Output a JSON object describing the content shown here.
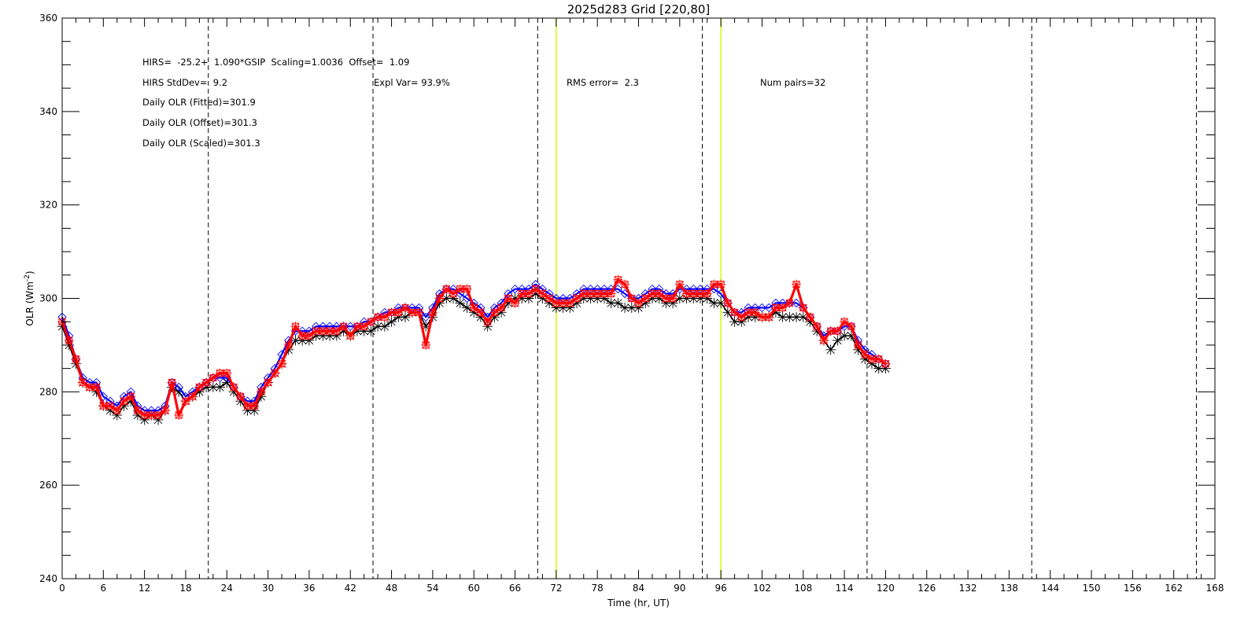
{
  "chart_data": {
    "type": "line",
    "title": "2025d283 Grid [220,80]",
    "xlabel": "Time (hr, UT)",
    "ylabel": "OLR (Wm",
    "ylabel_sup": "-2",
    "ylabel_close": ")",
    "xlim": [
      0,
      168
    ],
    "ylim": [
      240,
      360
    ],
    "xticks": [
      0,
      6,
      12,
      18,
      24,
      30,
      36,
      42,
      48,
      54,
      60,
      66,
      72,
      78,
      84,
      90,
      96,
      102,
      108,
      114,
      120,
      126,
      132,
      138,
      144,
      150,
      156,
      162,
      168
    ],
    "yticks": [
      240,
      260,
      280,
      300,
      320,
      340,
      360
    ],
    "grid": false,
    "annotations": {
      "fit_line": "HIRS=  -25.2+  1.090*GSIP  Scaling=1.0036  Offset=  1.09",
      "stddev": "HIRS StdDev=  9.2",
      "olr_fitted": "Daily OLR (Fitted)=301.9",
      "olr_offset": "Daily OLR (Offset)=301.3",
      "olr_scaled": "Daily OLR (Scaled)=301.3",
      "expl_var": "Expl Var= 93.9%",
      "rms_error": "RMS error=  2.3",
      "num_pairs": "Num pairs=32"
    },
    "dashed_vlines": [
      21.3,
      45.3,
      69.3,
      93.3,
      117.3,
      141.3,
      165.3
    ],
    "highlight_vlines": [
      72,
      96
    ],
    "colors": {
      "black_series": "#000000",
      "blue_series": "#0000ff",
      "red_series": "#ff0000",
      "highlight": "#ccff00"
    },
    "series": [
      {
        "key": "black",
        "marker": "asterisk",
        "x": [
          0,
          1,
          2,
          3,
          4,
          5,
          6,
          7,
          8,
          9,
          10,
          11,
          12,
          13,
          14,
          15,
          16,
          17,
          18,
          19,
          20,
          21,
          22,
          23,
          24,
          25,
          26,
          27,
          28,
          29,
          30,
          31,
          32,
          33,
          34,
          35,
          36,
          37,
          38,
          39,
          40,
          41,
          42,
          43,
          44,
          45,
          46,
          47,
          48,
          49,
          50,
          51,
          52,
          53,
          54,
          55,
          56,
          57,
          58,
          59,
          60,
          61,
          62,
          63,
          64,
          65,
          66,
          67,
          68,
          69,
          70,
          71,
          72,
          73,
          74,
          75,
          76,
          77,
          78,
          79,
          80,
          81,
          82,
          83,
          84,
          85,
          86,
          87,
          88,
          89,
          90,
          91,
          92,
          93,
          94,
          95,
          96,
          97,
          98,
          99,
          100,
          101,
          102,
          103,
          104,
          105,
          106,
          107,
          108,
          109,
          110,
          111,
          112,
          113,
          114,
          115,
          116,
          117,
          118,
          119,
          120
        ],
        "values": [
          294,
          290,
          286,
          282,
          281,
          280,
          277,
          276,
          275,
          277,
          278,
          275,
          274,
          275,
          274,
          276,
          281,
          280,
          278,
          279,
          280,
          281,
          281,
          281,
          282,
          280,
          278,
          276,
          276,
          279,
          282,
          284,
          286,
          289,
          291,
          291,
          291,
          292,
          292,
          292,
          292,
          293,
          292,
          293,
          293,
          293,
          294,
          294,
          295,
          296,
          296,
          297,
          297,
          294,
          296,
          299,
          300,
          300,
          299,
          298,
          297,
          296,
          294,
          296,
          297,
          299,
          300,
          300,
          300,
          301,
          300,
          299,
          298,
          298,
          298,
          299,
          300,
          300,
          300,
          300,
          299,
          299,
          298,
          298,
          298,
          299,
          300,
          300,
          299,
          299,
          300,
          300,
          300,
          300,
          300,
          299,
          299,
          297,
          295,
          295,
          296,
          296,
          296,
          296,
          297,
          296,
          296,
          296,
          296,
          295,
          293,
          291,
          289,
          291,
          292,
          292,
          289,
          287,
          286,
          285,
          285
        ]
      },
      {
        "key": "blue",
        "marker": "diamond",
        "x": [
          0,
          1,
          2,
          3,
          4,
          5,
          6,
          7,
          8,
          9,
          10,
          11,
          12,
          13,
          14,
          15,
          16,
          17,
          18,
          19,
          20,
          21,
          22,
          23,
          24,
          25,
          26,
          27,
          28,
          29,
          30,
          31,
          32,
          33,
          34,
          35,
          36,
          37,
          38,
          39,
          40,
          41,
          42,
          43,
          44,
          45,
          46,
          47,
          48,
          49,
          50,
          51,
          52,
          53,
          54,
          55,
          56,
          57,
          58,
          59,
          60,
          61,
          62,
          63,
          64,
          65,
          66,
          67,
          68,
          69,
          70,
          71,
          72,
          73,
          74,
          75,
          76,
          77,
          78,
          79,
          80,
          81,
          82,
          83,
          84,
          85,
          86,
          87,
          88,
          89,
          90,
          91,
          92,
          93,
          94,
          95,
          96,
          97,
          98,
          99,
          100,
          101,
          102,
          103,
          104,
          105,
          106,
          107,
          108,
          109,
          110,
          111,
          112,
          113,
          114,
          115,
          116,
          117,
          118,
          119,
          120
        ],
        "values": [
          296,
          292,
          287,
          283,
          282,
          282,
          279,
          278,
          277,
          279,
          280,
          277,
          276,
          276,
          276,
          277,
          282,
          281,
          279,
          280,
          281,
          282,
          283,
          283,
          283,
          281,
          279,
          278,
          278,
          281,
          283,
          285,
          288,
          291,
          293,
          293,
          293,
          294,
          294,
          294,
          294,
          294,
          294,
          294,
          295,
          295,
          296,
          297,
          297,
          298,
          298,
          298,
          298,
          296,
          298,
          301,
          302,
          302,
          301,
          300,
          299,
          298,
          296,
          298,
          299,
          301,
          302,
          302,
          302,
          303,
          302,
          301,
          300,
          300,
          300,
          301,
          302,
          302,
          302,
          302,
          302,
          302,
          301,
          300,
          300,
          301,
          302,
          302,
          301,
          301,
          302,
          302,
          302,
          302,
          302,
          302,
          301,
          299,
          297,
          297,
          298,
          298,
          298,
          298,
          299,
          299,
          299,
          299,
          298,
          296,
          294,
          292,
          293,
          293,
          294,
          294,
          291,
          289,
          288,
          287,
          286
        ]
      },
      {
        "key": "red",
        "marker": "asterisk-box",
        "x": [
          0,
          1,
          2,
          3,
          4,
          5,
          6,
          7,
          8,
          9,
          10,
          11,
          12,
          13,
          14,
          15,
          16,
          17,
          18,
          19,
          20,
          21,
          22,
          23,
          24,
          25,
          26,
          27,
          28,
          29,
          30,
          31,
          32,
          33,
          34,
          35,
          36,
          37,
          38,
          39,
          40,
          41,
          42,
          43,
          44,
          45,
          46,
          47,
          48,
          49,
          50,
          51,
          52,
          53,
          54,
          55,
          56,
          57,
          58,
          59,
          60,
          61,
          62,
          63,
          64,
          65,
          66,
          67,
          68,
          69,
          70,
          71,
          72,
          73,
          74,
          75,
          76,
          77,
          78,
          79,
          80,
          81,
          82,
          83,
          84,
          85,
          86,
          87,
          88,
          89,
          90,
          91,
          92,
          93,
          94,
          95,
          96,
          97,
          98,
          99,
          100,
          101,
          102,
          103,
          104,
          105,
          106,
          107,
          108,
          109,
          110,
          111,
          112,
          113,
          114,
          115,
          116,
          117,
          118,
          119,
          120
        ],
        "values": [
          295,
          291,
          287,
          282,
          281,
          281,
          277,
          277,
          276,
          278,
          279,
          276,
          275,
          275,
          275,
          276,
          282,
          275,
          278,
          279,
          281,
          282,
          283,
          284,
          284,
          281,
          279,
          277,
          277,
          280,
          282,
          284,
          286,
          290,
          294,
          292,
          292,
          293,
          293,
          293,
          293,
          294,
          292,
          294,
          294,
          295,
          296,
          296,
          297,
          297,
          298,
          297,
          297,
          290,
          297,
          300,
          302,
          301,
          302,
          302,
          298,
          297,
          295,
          297,
          298,
          300,
          299,
          301,
          301,
          302,
          301,
          300,
          299,
          299,
          299,
          300,
          301,
          301,
          301,
          301,
          301,
          304,
          303,
          300,
          299,
          300,
          301,
          301,
          300,
          300,
          303,
          301,
          301,
          301,
          301,
          303,
          303,
          299,
          297,
          296,
          297,
          297,
          296,
          296,
          298,
          298,
          299,
          303,
          298,
          296,
          294,
          291,
          293,
          293,
          295,
          294,
          290,
          288,
          287,
          287,
          286
        ]
      }
    ]
  }
}
